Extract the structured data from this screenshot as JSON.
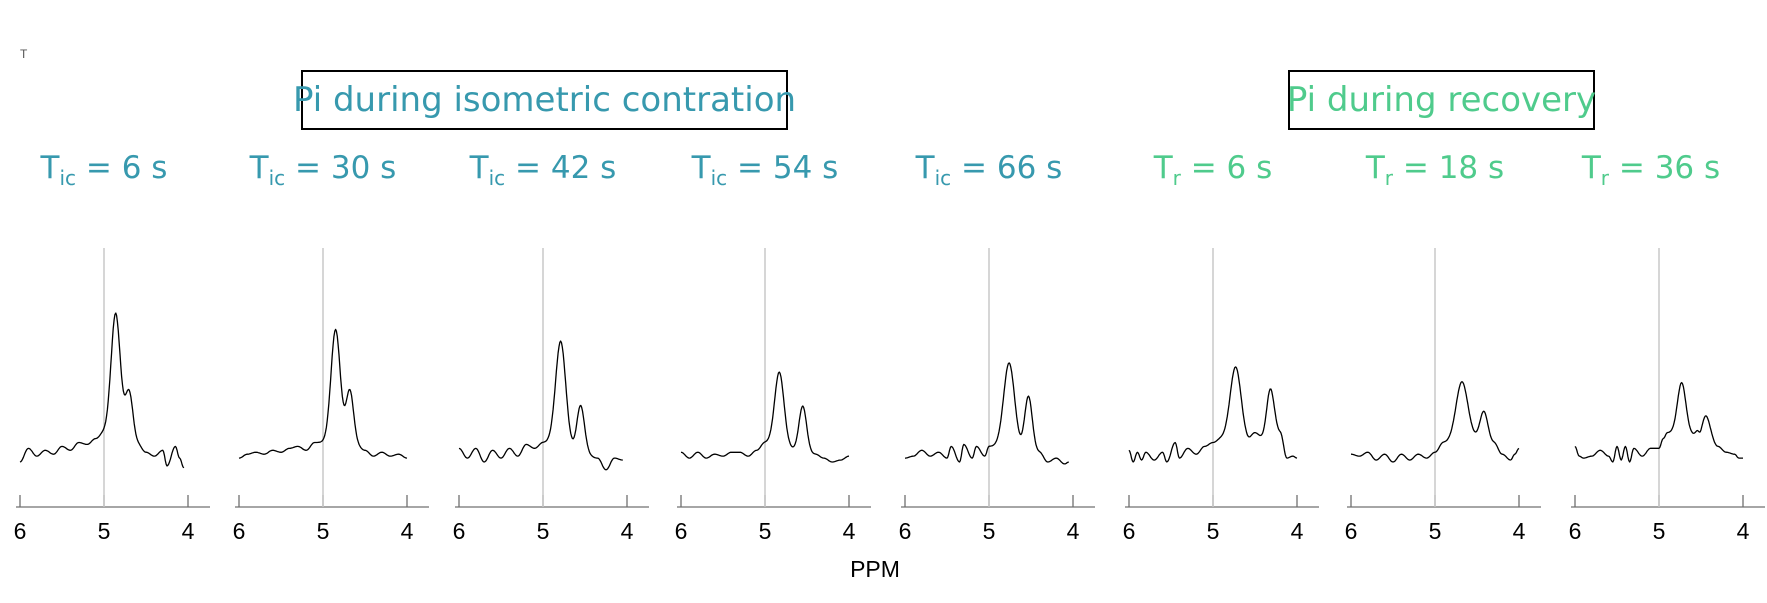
{
  "corner_mark": "T",
  "group_labels": {
    "isometric": "Pi during isometric contration",
    "recovery": "Pi during recovery"
  },
  "colors": {
    "isometric": "#3799AE",
    "recovery": "#4FCB8C",
    "trace": "#000000",
    "reference_line": "#c8c8c8",
    "axis": "#707070"
  },
  "chart_data": {
    "type": "line",
    "xlabel": "PPM",
    "x_reversed": true,
    "xlim": [
      6.0,
      4.0
    ],
    "xticks": [
      6,
      5,
      4
    ],
    "reference_ppm": 5.0,
    "grid": false,
    "panels": [
      {
        "group": "isometric",
        "title_main": "T",
        "title_sub": "ic",
        "title_rest": " = 6 s",
        "peak_ppm": 4.86,
        "peak_height": 0.62,
        "peak_width": 0.055,
        "shoulder_ppm": 4.7,
        "shoulder_height": 0.25,
        "baseline": [
          [
            6.0,
            0.0
          ],
          [
            5.9,
            0.07
          ],
          [
            5.8,
            0.03
          ],
          [
            5.7,
            0.06
          ],
          [
            5.6,
            0.04
          ],
          [
            5.5,
            0.08
          ],
          [
            5.4,
            0.06
          ],
          [
            5.3,
            0.1
          ],
          [
            5.2,
            0.09
          ],
          [
            5.1,
            0.12
          ],
          [
            5.0,
            0.15
          ],
          [
            4.9,
            0.15
          ],
          [
            4.8,
            0.13
          ],
          [
            4.6,
            0.09
          ],
          [
            4.5,
            0.05
          ],
          [
            4.4,
            0.03
          ],
          [
            4.3,
            0.06
          ],
          [
            4.25,
            -0.02
          ],
          [
            4.15,
            0.08
          ],
          [
            4.1,
            0.02
          ],
          [
            4.05,
            -0.03
          ]
        ]
      },
      {
        "group": "isometric",
        "title_main": "T",
        "title_sub": "ic",
        "title_rest": " = 30 s",
        "peak_ppm": 4.85,
        "peak_height": 0.58,
        "peak_width": 0.055,
        "shoulder_ppm": 4.68,
        "shoulder_height": 0.28,
        "baseline": [
          [
            6.0,
            0.02
          ],
          [
            5.9,
            0.04
          ],
          [
            5.8,
            0.05
          ],
          [
            5.7,
            0.04
          ],
          [
            5.6,
            0.06
          ],
          [
            5.5,
            0.05
          ],
          [
            5.4,
            0.07
          ],
          [
            5.3,
            0.08
          ],
          [
            5.2,
            0.06
          ],
          [
            5.1,
            0.1
          ],
          [
            5.0,
            0.1
          ],
          [
            4.8,
            0.1
          ],
          [
            4.6,
            0.08
          ],
          [
            4.5,
            0.06
          ],
          [
            4.4,
            0.03
          ],
          [
            4.3,
            0.05
          ],
          [
            4.2,
            0.03
          ],
          [
            4.1,
            0.04
          ],
          [
            4.0,
            0.02
          ]
        ]
      },
      {
        "group": "isometric",
        "title_main": "T",
        "title_sub": "ic",
        "title_rest": " = 42 s",
        "peak_ppm": 4.79,
        "peak_height": 0.52,
        "peak_width": 0.06,
        "shoulder_ppm": 4.55,
        "shoulder_height": 0.24,
        "baseline": [
          [
            6.0,
            0.07
          ],
          [
            5.9,
            0.02
          ],
          [
            5.8,
            0.07
          ],
          [
            5.7,
            0.0
          ],
          [
            5.6,
            0.06
          ],
          [
            5.5,
            0.02
          ],
          [
            5.4,
            0.07
          ],
          [
            5.3,
            0.03
          ],
          [
            5.2,
            0.09
          ],
          [
            5.1,
            0.07
          ],
          [
            5.0,
            0.1
          ],
          [
            4.8,
            0.1
          ],
          [
            4.6,
            0.06
          ],
          [
            4.5,
            0.04
          ],
          [
            4.35,
            0.02
          ],
          [
            4.25,
            -0.04
          ],
          [
            4.15,
            0.02
          ],
          [
            4.05,
            0.01
          ]
        ]
      },
      {
        "group": "isometric",
        "title_main": "T",
        "title_sub": "ic",
        "title_rest": " = 54 s",
        "peak_ppm": 4.83,
        "peak_height": 0.38,
        "peak_width": 0.055,
        "shoulder_ppm": 4.55,
        "shoulder_height": 0.23,
        "baseline": [
          [
            6.0,
            0.05
          ],
          [
            5.9,
            0.02
          ],
          [
            5.8,
            0.05
          ],
          [
            5.7,
            0.02
          ],
          [
            5.6,
            0.04
          ],
          [
            5.5,
            0.03
          ],
          [
            5.4,
            0.05
          ],
          [
            5.3,
            0.05
          ],
          [
            5.2,
            0.03
          ],
          [
            5.1,
            0.06
          ],
          [
            5.0,
            0.1
          ],
          [
            4.8,
            0.08
          ],
          [
            4.6,
            0.06
          ],
          [
            4.4,
            0.04
          ],
          [
            4.3,
            0.02
          ],
          [
            4.2,
            0.0
          ],
          [
            4.1,
            0.01
          ],
          [
            4.0,
            0.03
          ]
        ]
      },
      {
        "group": "isometric",
        "title_main": "T",
        "title_sub": "ic",
        "title_rest": " = 66 s",
        "peak_ppm": 4.76,
        "peak_height": 0.43,
        "peak_width": 0.065,
        "shoulder_ppm": 4.53,
        "shoulder_height": 0.28,
        "baseline": [
          [
            6.0,
            0.02
          ],
          [
            5.9,
            0.03
          ],
          [
            5.8,
            0.06
          ],
          [
            5.7,
            0.03
          ],
          [
            5.6,
            0.05
          ],
          [
            5.5,
            0.02
          ],
          [
            5.45,
            0.08
          ],
          [
            5.35,
            0.0
          ],
          [
            5.3,
            0.09
          ],
          [
            5.2,
            0.02
          ],
          [
            5.15,
            0.08
          ],
          [
            5.05,
            0.03
          ],
          [
            5.0,
            0.08
          ],
          [
            4.8,
            0.08
          ],
          [
            4.6,
            0.06
          ],
          [
            4.4,
            0.05
          ],
          [
            4.3,
            0.0
          ],
          [
            4.2,
            0.02
          ],
          [
            4.1,
            -0.01
          ],
          [
            4.05,
            0.0
          ]
        ]
      },
      {
        "group": "recovery",
        "title_main": "T",
        "title_sub": "r",
        "title_rest": " = 6 s",
        "peak_ppm": 4.73,
        "peak_height": 0.38,
        "peak_width": 0.065,
        "shoulder_ppm": 4.32,
        "shoulder_height": 0.2,
        "baseline": [
          [
            6.0,
            0.06
          ],
          [
            5.95,
            0.0
          ],
          [
            5.9,
            0.05
          ],
          [
            5.85,
            0.01
          ],
          [
            5.8,
            0.05
          ],
          [
            5.7,
            0.01
          ],
          [
            5.6,
            0.05
          ],
          [
            5.55,
            0.0
          ],
          [
            5.45,
            0.1
          ],
          [
            5.4,
            0.02
          ],
          [
            5.3,
            0.07
          ],
          [
            5.2,
            0.04
          ],
          [
            5.1,
            0.08
          ],
          [
            5.0,
            0.1
          ],
          [
            4.9,
            0.12
          ],
          [
            4.6,
            0.1
          ],
          [
            4.5,
            0.15
          ],
          [
            4.4,
            0.12
          ],
          [
            4.3,
            0.18
          ],
          [
            4.2,
            0.15
          ],
          [
            4.12,
            0.02
          ],
          [
            4.05,
            0.03
          ],
          [
            4.0,
            0.02
          ]
        ]
      },
      {
        "group": "recovery",
        "title_main": "T",
        "title_sub": "r",
        "title_rest": " = 18 s",
        "peak_ppm": 4.68,
        "peak_height": 0.3,
        "peak_width": 0.07,
        "shoulder_ppm": 4.42,
        "shoulder_height": 0.14,
        "baseline": [
          [
            6.0,
            0.04
          ],
          [
            5.9,
            0.03
          ],
          [
            5.8,
            0.05
          ],
          [
            5.7,
            0.01
          ],
          [
            5.6,
            0.04
          ],
          [
            5.5,
            0.0
          ],
          [
            5.4,
            0.04
          ],
          [
            5.3,
            0.01
          ],
          [
            5.2,
            0.04
          ],
          [
            5.1,
            0.02
          ],
          [
            5.0,
            0.05
          ],
          [
            4.9,
            0.1
          ],
          [
            4.5,
            0.12
          ],
          [
            4.4,
            0.12
          ],
          [
            4.3,
            0.1
          ],
          [
            4.2,
            0.04
          ],
          [
            4.1,
            0.01
          ],
          [
            4.05,
            0.04
          ],
          [
            4.0,
            0.07
          ]
        ]
      },
      {
        "group": "recovery",
        "title_main": "T",
        "title_sub": "r",
        "title_rest": " = 36 s",
        "peak_ppm": 4.73,
        "peak_height": 0.26,
        "peak_width": 0.05,
        "shoulder_ppm": 4.45,
        "shoulder_height": 0.12,
        "baseline": [
          [
            6.0,
            0.08
          ],
          [
            5.95,
            0.03
          ],
          [
            5.9,
            0.02
          ],
          [
            5.8,
            0.03
          ],
          [
            5.7,
            0.06
          ],
          [
            5.6,
            0.03
          ],
          [
            5.55,
            0.0
          ],
          [
            5.5,
            0.08
          ],
          [
            5.45,
            0.01
          ],
          [
            5.4,
            0.08
          ],
          [
            5.35,
            0.0
          ],
          [
            5.3,
            0.07
          ],
          [
            5.2,
            0.03
          ],
          [
            5.1,
            0.07
          ],
          [
            5.0,
            0.07
          ],
          [
            4.95,
            0.12
          ],
          [
            4.9,
            0.15
          ],
          [
            4.8,
            0.15
          ],
          [
            4.6,
            0.14
          ],
          [
            4.55,
            0.15
          ],
          [
            4.5,
            0.1
          ],
          [
            4.4,
            0.13
          ],
          [
            4.3,
            0.08
          ],
          [
            4.2,
            0.05
          ],
          [
            4.1,
            0.04
          ],
          [
            4.05,
            0.02
          ],
          [
            4.0,
            0.02
          ]
        ]
      }
    ]
  }
}
